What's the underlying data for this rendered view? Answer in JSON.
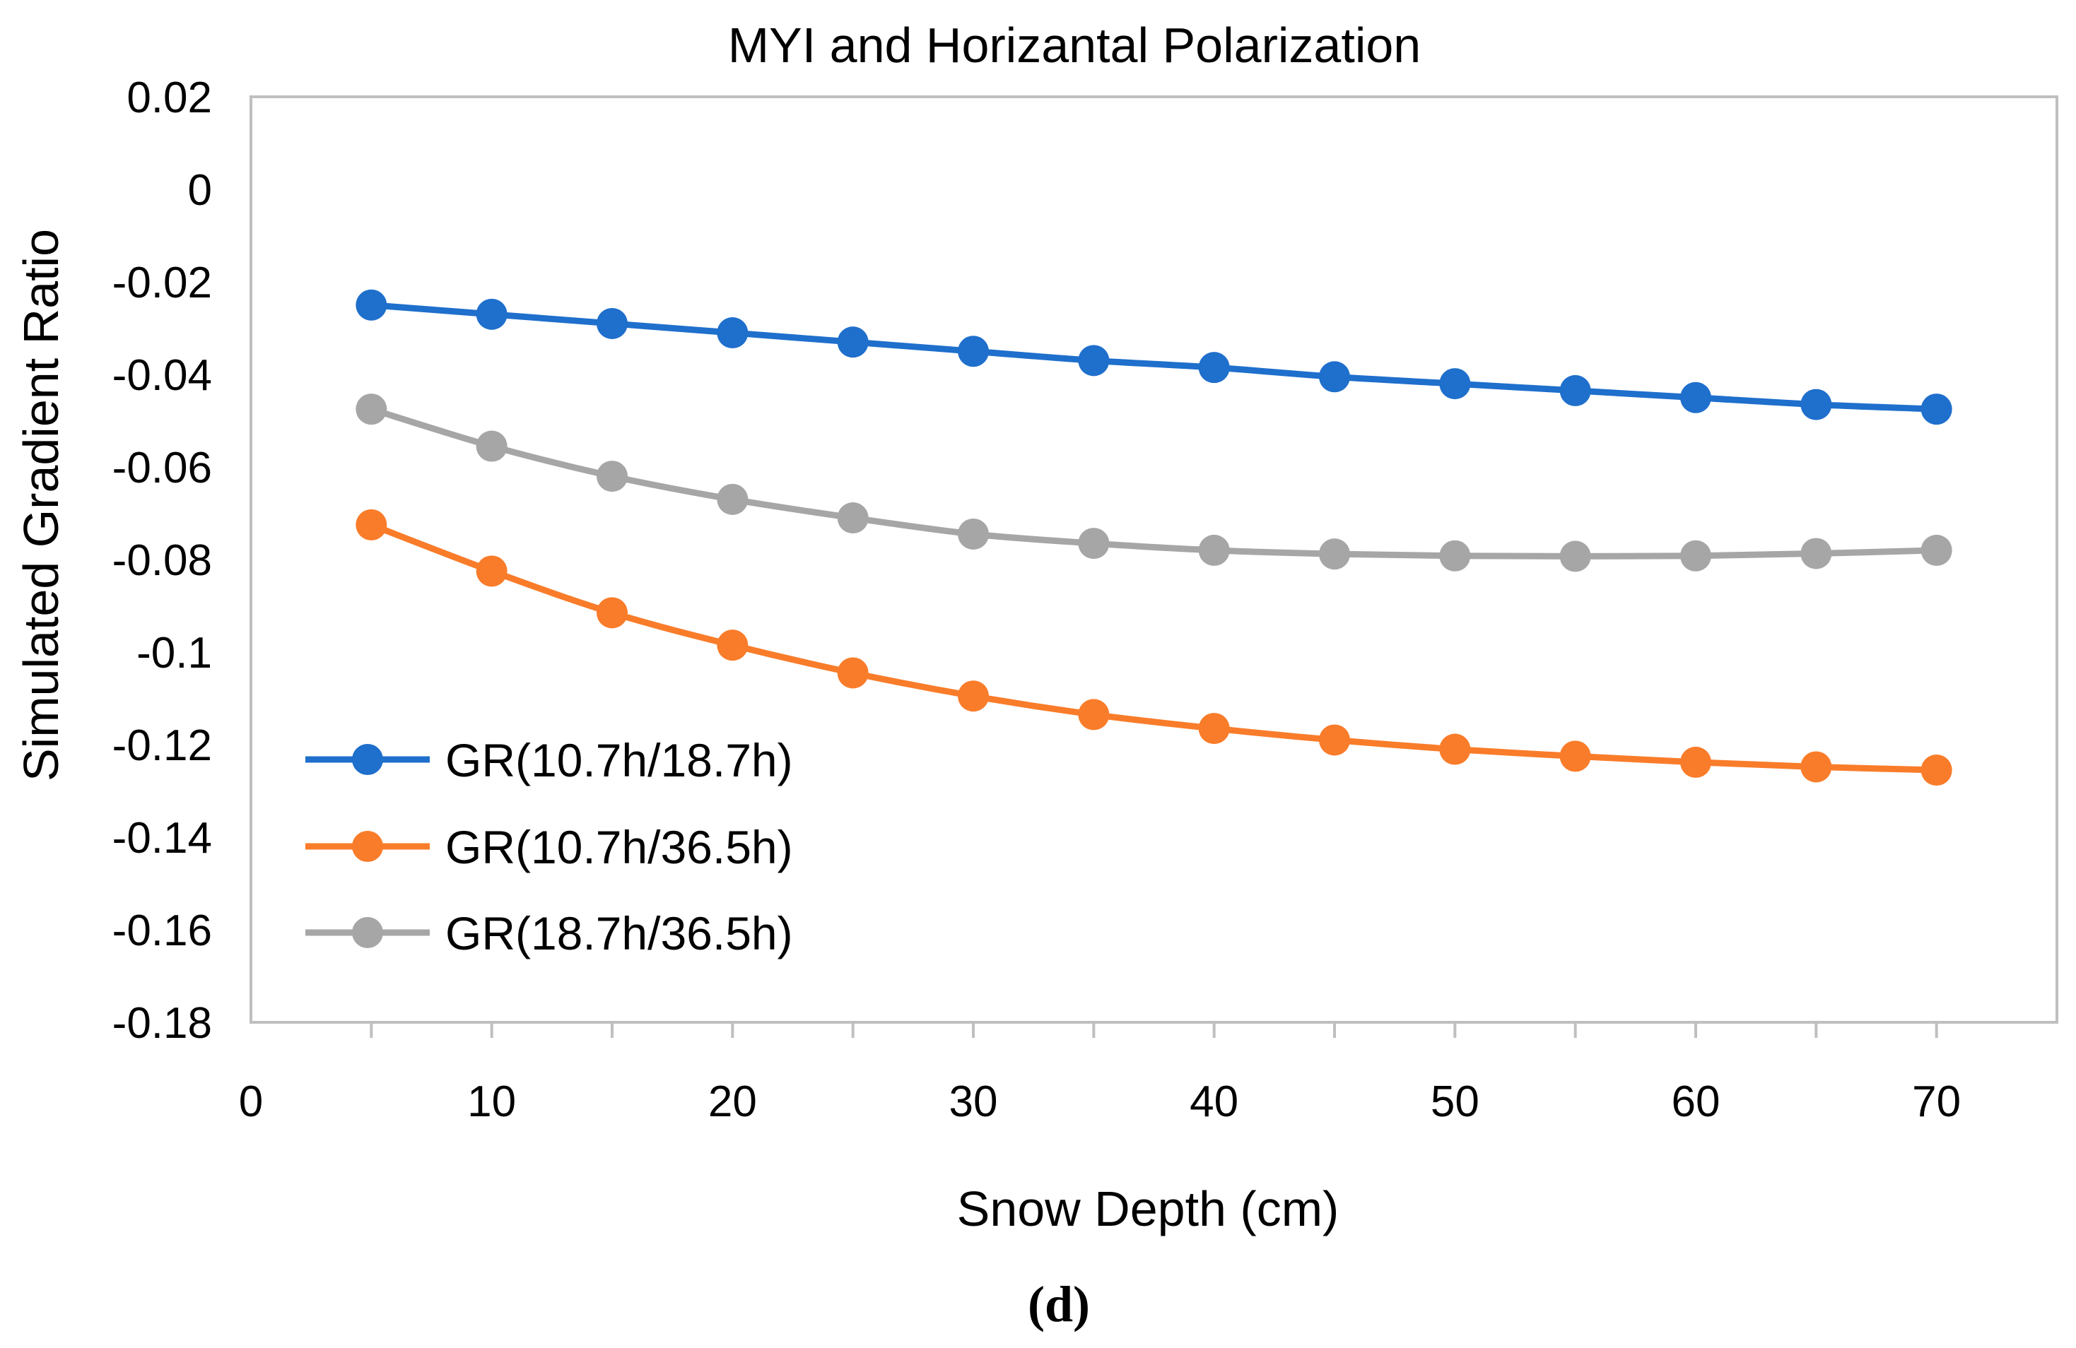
{
  "panel_label": "(d)",
  "chart_data": {
    "type": "line",
    "title": "MYI and Horizantal Polarization",
    "xlabel": "Snow Depth (cm)",
    "ylabel": "Simulated Gradient Ratio",
    "xlim": [
      0,
      75
    ],
    "ylim": [
      -0.18,
      0.02
    ],
    "x_ticks": [
      0,
      10,
      20,
      30,
      40,
      50,
      60,
      70
    ],
    "y_ticks": [
      0.02,
      0,
      -0.02,
      -0.04,
      -0.06,
      -0.08,
      -0.1,
      -0.12,
      -0.14,
      -0.16,
      -0.18
    ],
    "x_tick_labels": [
      "0",
      "10",
      "20",
      "30",
      "40",
      "50",
      "60",
      "70"
    ],
    "y_tick_labels": [
      "0.02",
      "0",
      "-0.02",
      "-0.04",
      "-0.06",
      "-0.08",
      "-0.1",
      "-0.12",
      "-0.14",
      "-0.16",
      "-0.18"
    ],
    "legend_position": "bottom-left",
    "grid": false,
    "x": [
      5,
      10,
      15,
      20,
      25,
      30,
      35,
      40,
      45,
      50,
      55,
      60,
      65,
      70
    ],
    "series": [
      {
        "name": "GR(10.7h/18.7h)",
        "color": "#1f6fcc",
        "values": [
          -0.025,
          -0.027,
          -0.029,
          -0.031,
          -0.033,
          -0.035,
          -0.037,
          -0.0385,
          -0.0405,
          -0.042,
          -0.0435,
          -0.045,
          -0.0465,
          -0.0475
        ]
      },
      {
        "name": "GR(10.7h/36.5h)",
        "color": "#f97c2a",
        "values": [
          -0.0725,
          -0.0825,
          -0.0915,
          -0.0985,
          -0.1045,
          -0.1095,
          -0.1135,
          -0.1165,
          -0.119,
          -0.121,
          -0.1225,
          -0.1238,
          -0.1248,
          -0.1255
        ]
      },
      {
        "name": "GR(18.7h/36.5h)",
        "color": "#a6a6a6",
        "values": [
          -0.0475,
          -0.0555,
          -0.062,
          -0.067,
          -0.071,
          -0.0745,
          -0.0765,
          -0.078,
          -0.0788,
          -0.0792,
          -0.0793,
          -0.0792,
          -0.0787,
          -0.078
        ]
      }
    ]
  }
}
